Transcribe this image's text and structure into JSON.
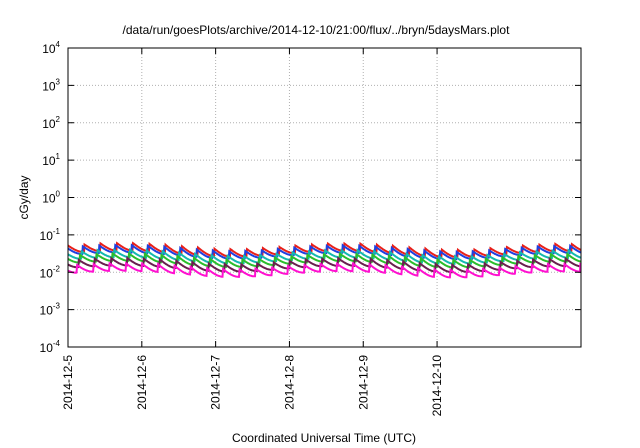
{
  "chart_data": {
    "type": "line",
    "title": "/data/run/goesPlots/archive/2014-12-10/21:00/flux/../bryn/5daysMars.plot",
    "xlabel": "Coordinated Universal Time (UTC)",
    "ylabel": "cGy/day",
    "yscale": "log",
    "ylim": [
      0.0001,
      10000
    ],
    "yticks": [
      {
        "base": "10",
        "exp": "-4"
      },
      {
        "base": "10",
        "exp": "-3"
      },
      {
        "base": "10",
        "exp": "-2"
      },
      {
        "base": "10",
        "exp": "-1"
      },
      {
        "base": "10",
        "exp": "0"
      },
      {
        "base": "10",
        "exp": "1"
      },
      {
        "base": "10",
        "exp": "2"
      },
      {
        "base": "10",
        "exp": "3"
      },
      {
        "base": "10",
        "exp": "4"
      }
    ],
    "xlim_days": [
      0,
      6.95
    ],
    "xticks": [
      "2014-12-5",
      "2014-12-6",
      "2014-12-7",
      "2014-12-8",
      "2014-12-9",
      "2014-12-10"
    ],
    "grid": true,
    "series": [
      {
        "color": "#e8201a",
        "base": 0.045,
        "amp": 0.6,
        "phase": 0.0
      },
      {
        "color": "#1f3fe0",
        "base": 0.04,
        "amp": 0.6,
        "phase": 0.02
      },
      {
        "color": "#14b8b0",
        "base": 0.03,
        "amp": 0.6,
        "phase": 0.04
      },
      {
        "color": "#2bbd2b",
        "base": 0.024,
        "amp": 0.6,
        "phase": 0.06
      },
      {
        "color": "#6a1f4f",
        "base": 0.018,
        "amp": 0.6,
        "phase": 0.08
      },
      {
        "color": "#ff10d0",
        "base": 0.013,
        "amp": 0.6,
        "phase": 0.1
      }
    ],
    "sawtooth_period_days": 0.22
  }
}
